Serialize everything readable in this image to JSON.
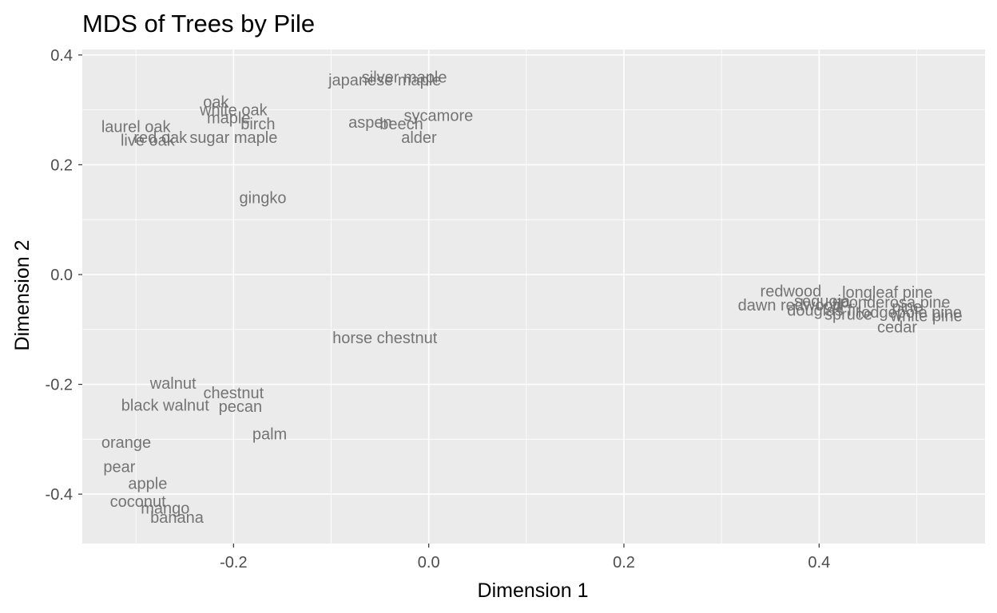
{
  "chart_data": {
    "type": "scatter",
    "title": "MDS of Trees by Pile",
    "xlabel": "Dimension 1",
    "ylabel": "Dimension 2",
    "xlim": [
      -0.355,
      0.57
    ],
    "ylim": [
      -0.49,
      0.41
    ],
    "x_ticks": [
      -0.2,
      0.0,
      0.2,
      0.4
    ],
    "y_ticks": [
      -0.4,
      -0.2,
      0.0,
      0.2,
      0.4
    ],
    "x_tick_labels": [
      "-0.2",
      "0.0",
      "0.2",
      "0.4"
    ],
    "y_tick_labels": [
      "-0.4",
      "-0.2",
      "0.0",
      "0.2",
      "0.4"
    ],
    "grid": true,
    "points": [
      {
        "label": "silver maple",
        "x": -0.025,
        "y": 0.36
      },
      {
        "label": "japanese maple",
        "x": -0.045,
        "y": 0.355
      },
      {
        "label": "oak",
        "x": -0.218,
        "y": 0.315
      },
      {
        "label": "white oak",
        "x": -0.2,
        "y": 0.3
      },
      {
        "label": "maple",
        "x": -0.205,
        "y": 0.286
      },
      {
        "label": "birch",
        "x": -0.175,
        "y": 0.275
      },
      {
        "label": "laurel oak",
        "x": -0.3,
        "y": 0.27
      },
      {
        "label": "sycamore",
        "x": 0.01,
        "y": 0.29
      },
      {
        "label": "aspen",
        "x": -0.06,
        "y": 0.278
      },
      {
        "label": "beech",
        "x": -0.028,
        "y": 0.275
      },
      {
        "label": "alder",
        "x": -0.01,
        "y": 0.25
      },
      {
        "label": "red oak",
        "x": -0.275,
        "y": 0.25
      },
      {
        "label": "live oak",
        "x": -0.288,
        "y": 0.245
      },
      {
        "label": "sugar maple",
        "x": -0.2,
        "y": 0.25
      },
      {
        "label": "gingko",
        "x": -0.17,
        "y": 0.14
      },
      {
        "label": "redwood",
        "x": 0.371,
        "y": -0.03
      },
      {
        "label": "longleaf pine",
        "x": 0.47,
        "y": -0.032
      },
      {
        "label": "sequoia",
        "x": 0.403,
        "y": -0.048
      },
      {
        "label": "ponderosa pine",
        "x": 0.478,
        "y": -0.05
      },
      {
        "label": "dawn redwood",
        "x": 0.37,
        "y": -0.055
      },
      {
        "label": "fir",
        "x": 0.42,
        "y": -0.055
      },
      {
        "label": "pine",
        "x": 0.49,
        "y": -0.058
      },
      {
        "label": "douglas fir",
        "x": 0.405,
        "y": -0.065
      },
      {
        "label": "lodgepole pine",
        "x": 0.493,
        "y": -0.068
      },
      {
        "label": "spruce",
        "x": 0.43,
        "y": -0.072
      },
      {
        "label": "white pine",
        "x": 0.51,
        "y": -0.075
      },
      {
        "label": "cedar",
        "x": 0.48,
        "y": -0.095
      },
      {
        "label": "horse chestnut",
        "x": -0.045,
        "y": -0.115
      },
      {
        "label": "walnut",
        "x": -0.262,
        "y": -0.198
      },
      {
        "label": "chestnut",
        "x": -0.2,
        "y": -0.215
      },
      {
        "label": "black walnut",
        "x": -0.27,
        "y": -0.238
      },
      {
        "label": "pecan",
        "x": -0.193,
        "y": -0.24
      },
      {
        "label": "palm",
        "x": -0.163,
        "y": -0.29
      },
      {
        "label": "orange",
        "x": -0.31,
        "y": -0.305
      },
      {
        "label": "pear",
        "x": -0.317,
        "y": -0.35
      },
      {
        "label": "apple",
        "x": -0.288,
        "y": -0.38
      },
      {
        "label": "coconut",
        "x": -0.298,
        "y": -0.413
      },
      {
        "label": "mango",
        "x": -0.27,
        "y": -0.425
      },
      {
        "label": "banana",
        "x": -0.258,
        "y": -0.442
      }
    ]
  }
}
